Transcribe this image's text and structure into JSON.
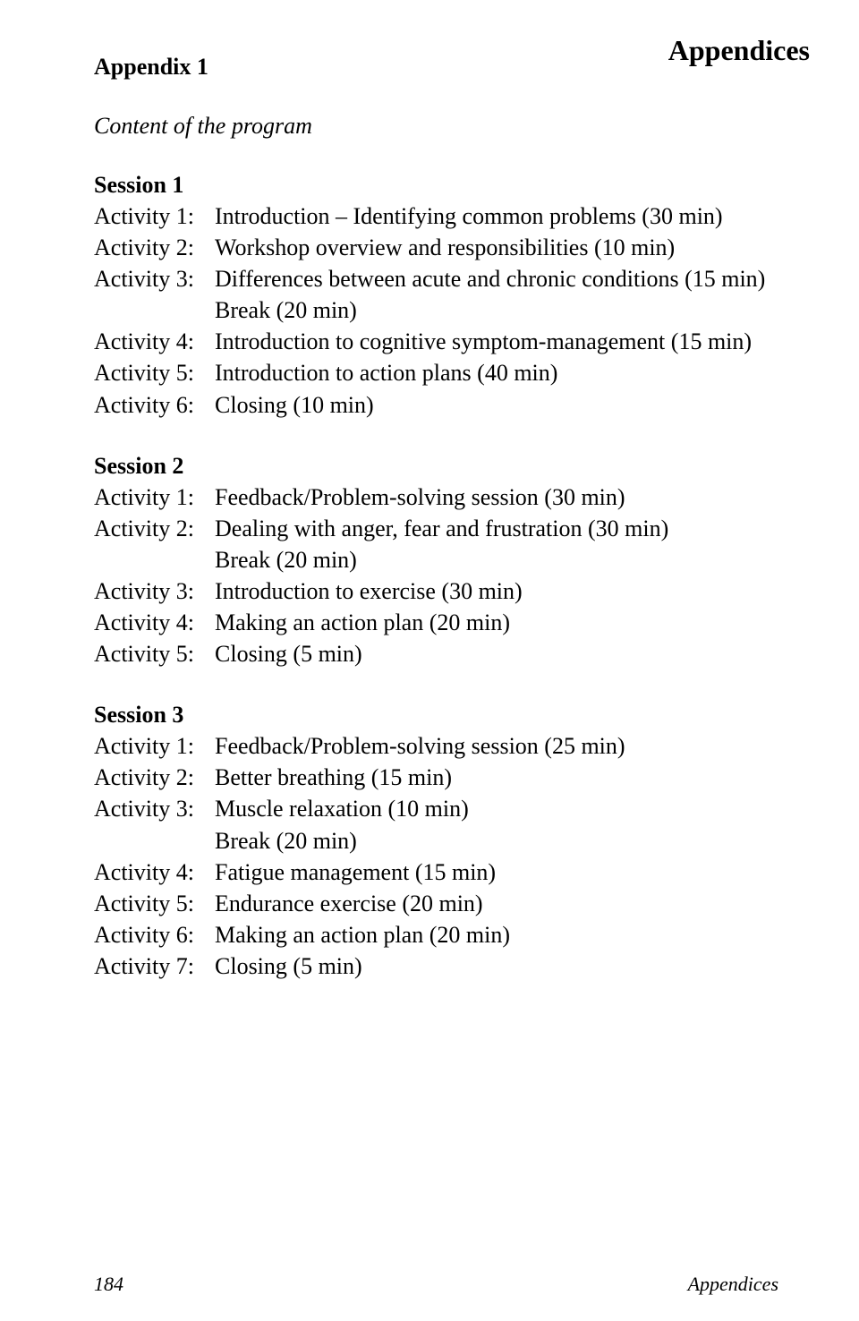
{
  "header": {
    "appendices": "Appendices",
    "appendix_title": "Appendix 1",
    "subtitle": "Content of the program"
  },
  "sessions": [
    {
      "title": "Session 1",
      "rows": [
        {
          "label": "Activity 1:",
          "desc": "Introduction – Identifying common problems (30 min)"
        },
        {
          "label": "Activity 2:",
          "desc": "Workshop overview and responsibilities (10 min)"
        },
        {
          "label": "Activity 3:",
          "desc": "Differences between acute and chronic conditions (15 min)"
        },
        {
          "label": "",
          "desc": "Break (20 min)",
          "indent": true
        },
        {
          "label": "Activity 4:",
          "desc": "Introduction to cognitive symptom-management (15 min)"
        },
        {
          "label": "Activity 5:",
          "desc": "Introduction to action plans (40 min)"
        },
        {
          "label": "Activity 6:",
          "desc": "Closing (10 min)"
        }
      ]
    },
    {
      "title": "Session 2",
      "rows": [
        {
          "label": "Activity 1:",
          "desc": "Feedback/Problem-solving session (30 min)"
        },
        {
          "label": "Activity 2:",
          "desc": "Dealing with anger, fear and frustration (30 min)"
        },
        {
          "label": "",
          "desc": "Break (20 min)",
          "indent": true
        },
        {
          "label": "Activity 3:",
          "desc": "Introduction to exercise (30 min)"
        },
        {
          "label": "Activity 4:",
          "desc": "Making an action plan (20 min)"
        },
        {
          "label": "Activity 5:",
          "desc": "Closing (5 min)"
        }
      ]
    },
    {
      "title": "Session 3",
      "rows": [
        {
          "label": "Activity 1:",
          "desc": "Feedback/Problem-solving session (25 min)"
        },
        {
          "label": "Activity 2:",
          "desc": "Better breathing (15 min)"
        },
        {
          "label": "Activity 3:",
          "desc": "Muscle relaxation (10 min)"
        },
        {
          "label": "",
          "desc": "Break (20 min)",
          "indent": true
        },
        {
          "label": "Activity 4:",
          "desc": "Fatigue management (15 min)"
        },
        {
          "label": "Activity 5:",
          "desc": "Endurance exercise (20 min)"
        },
        {
          "label": "Activity 6:",
          "desc": "Making an action plan (20 min)"
        },
        {
          "label": "Activity 7:",
          "desc": "Closing (5 min)"
        }
      ]
    }
  ],
  "footer": {
    "page_number": "184",
    "right": "Appendices"
  }
}
